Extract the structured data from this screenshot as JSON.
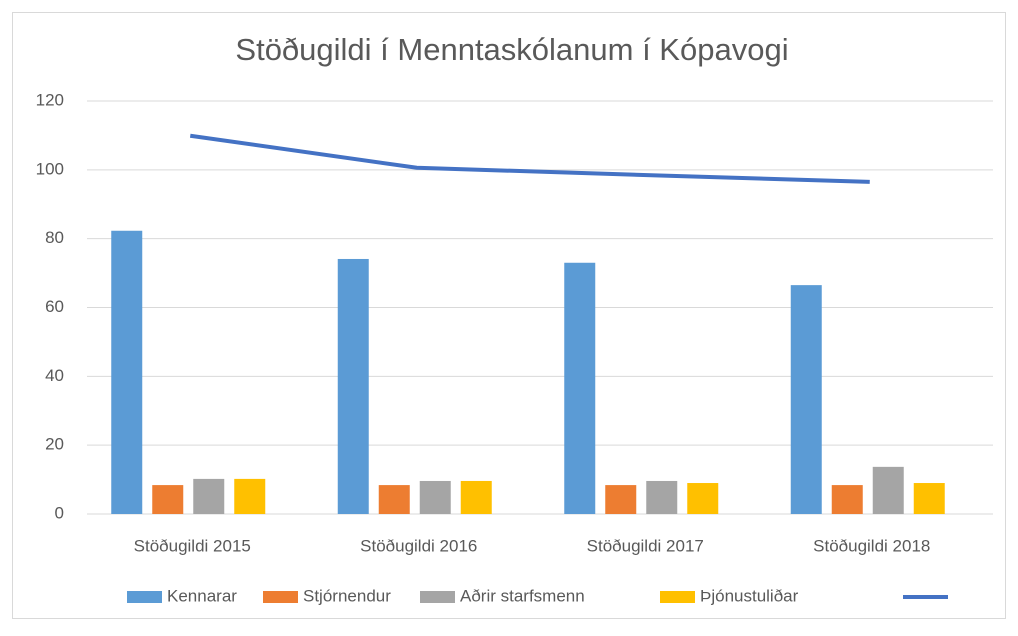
{
  "chart_data": {
    "type": "bar",
    "title": "Stöðugildi í Menntaskólanum í Kópavogi",
    "categories": [
      "Stöðugildi 2015",
      "Stöðugildi 2016",
      "Stöðugildi 2017",
      "Stöðugildi 2018"
    ],
    "series": [
      {
        "name": "Kennarar",
        "color": "#5b9bd5",
        "values": [
          82.3,
          74.1,
          73,
          66.5
        ]
      },
      {
        "name": "Stjórnendur",
        "color": "#ed7d31",
        "values": [
          8.4,
          8.4,
          8.4,
          8.4
        ]
      },
      {
        "name": "Aðrir starfsmenn",
        "color": "#a5a5a5",
        "values": [
          10.2,
          9.6,
          9.6,
          13.7
        ]
      },
      {
        "name": "Þjónustuliðar",
        "color": "#ffc000",
        "values": [
          10.2,
          9.6,
          9,
          9
        ]
      },
      {
        "type": "line",
        "color": "#4472c4",
        "values": [
          109.9,
          100.6,
          98.5,
          96.5
        ]
      }
    ],
    "ylim": [
      0,
      120
    ],
    "yticks": [
      0,
      20,
      40,
      60,
      80,
      100,
      120
    ],
    "grid": true,
    "legend": "bottom"
  }
}
